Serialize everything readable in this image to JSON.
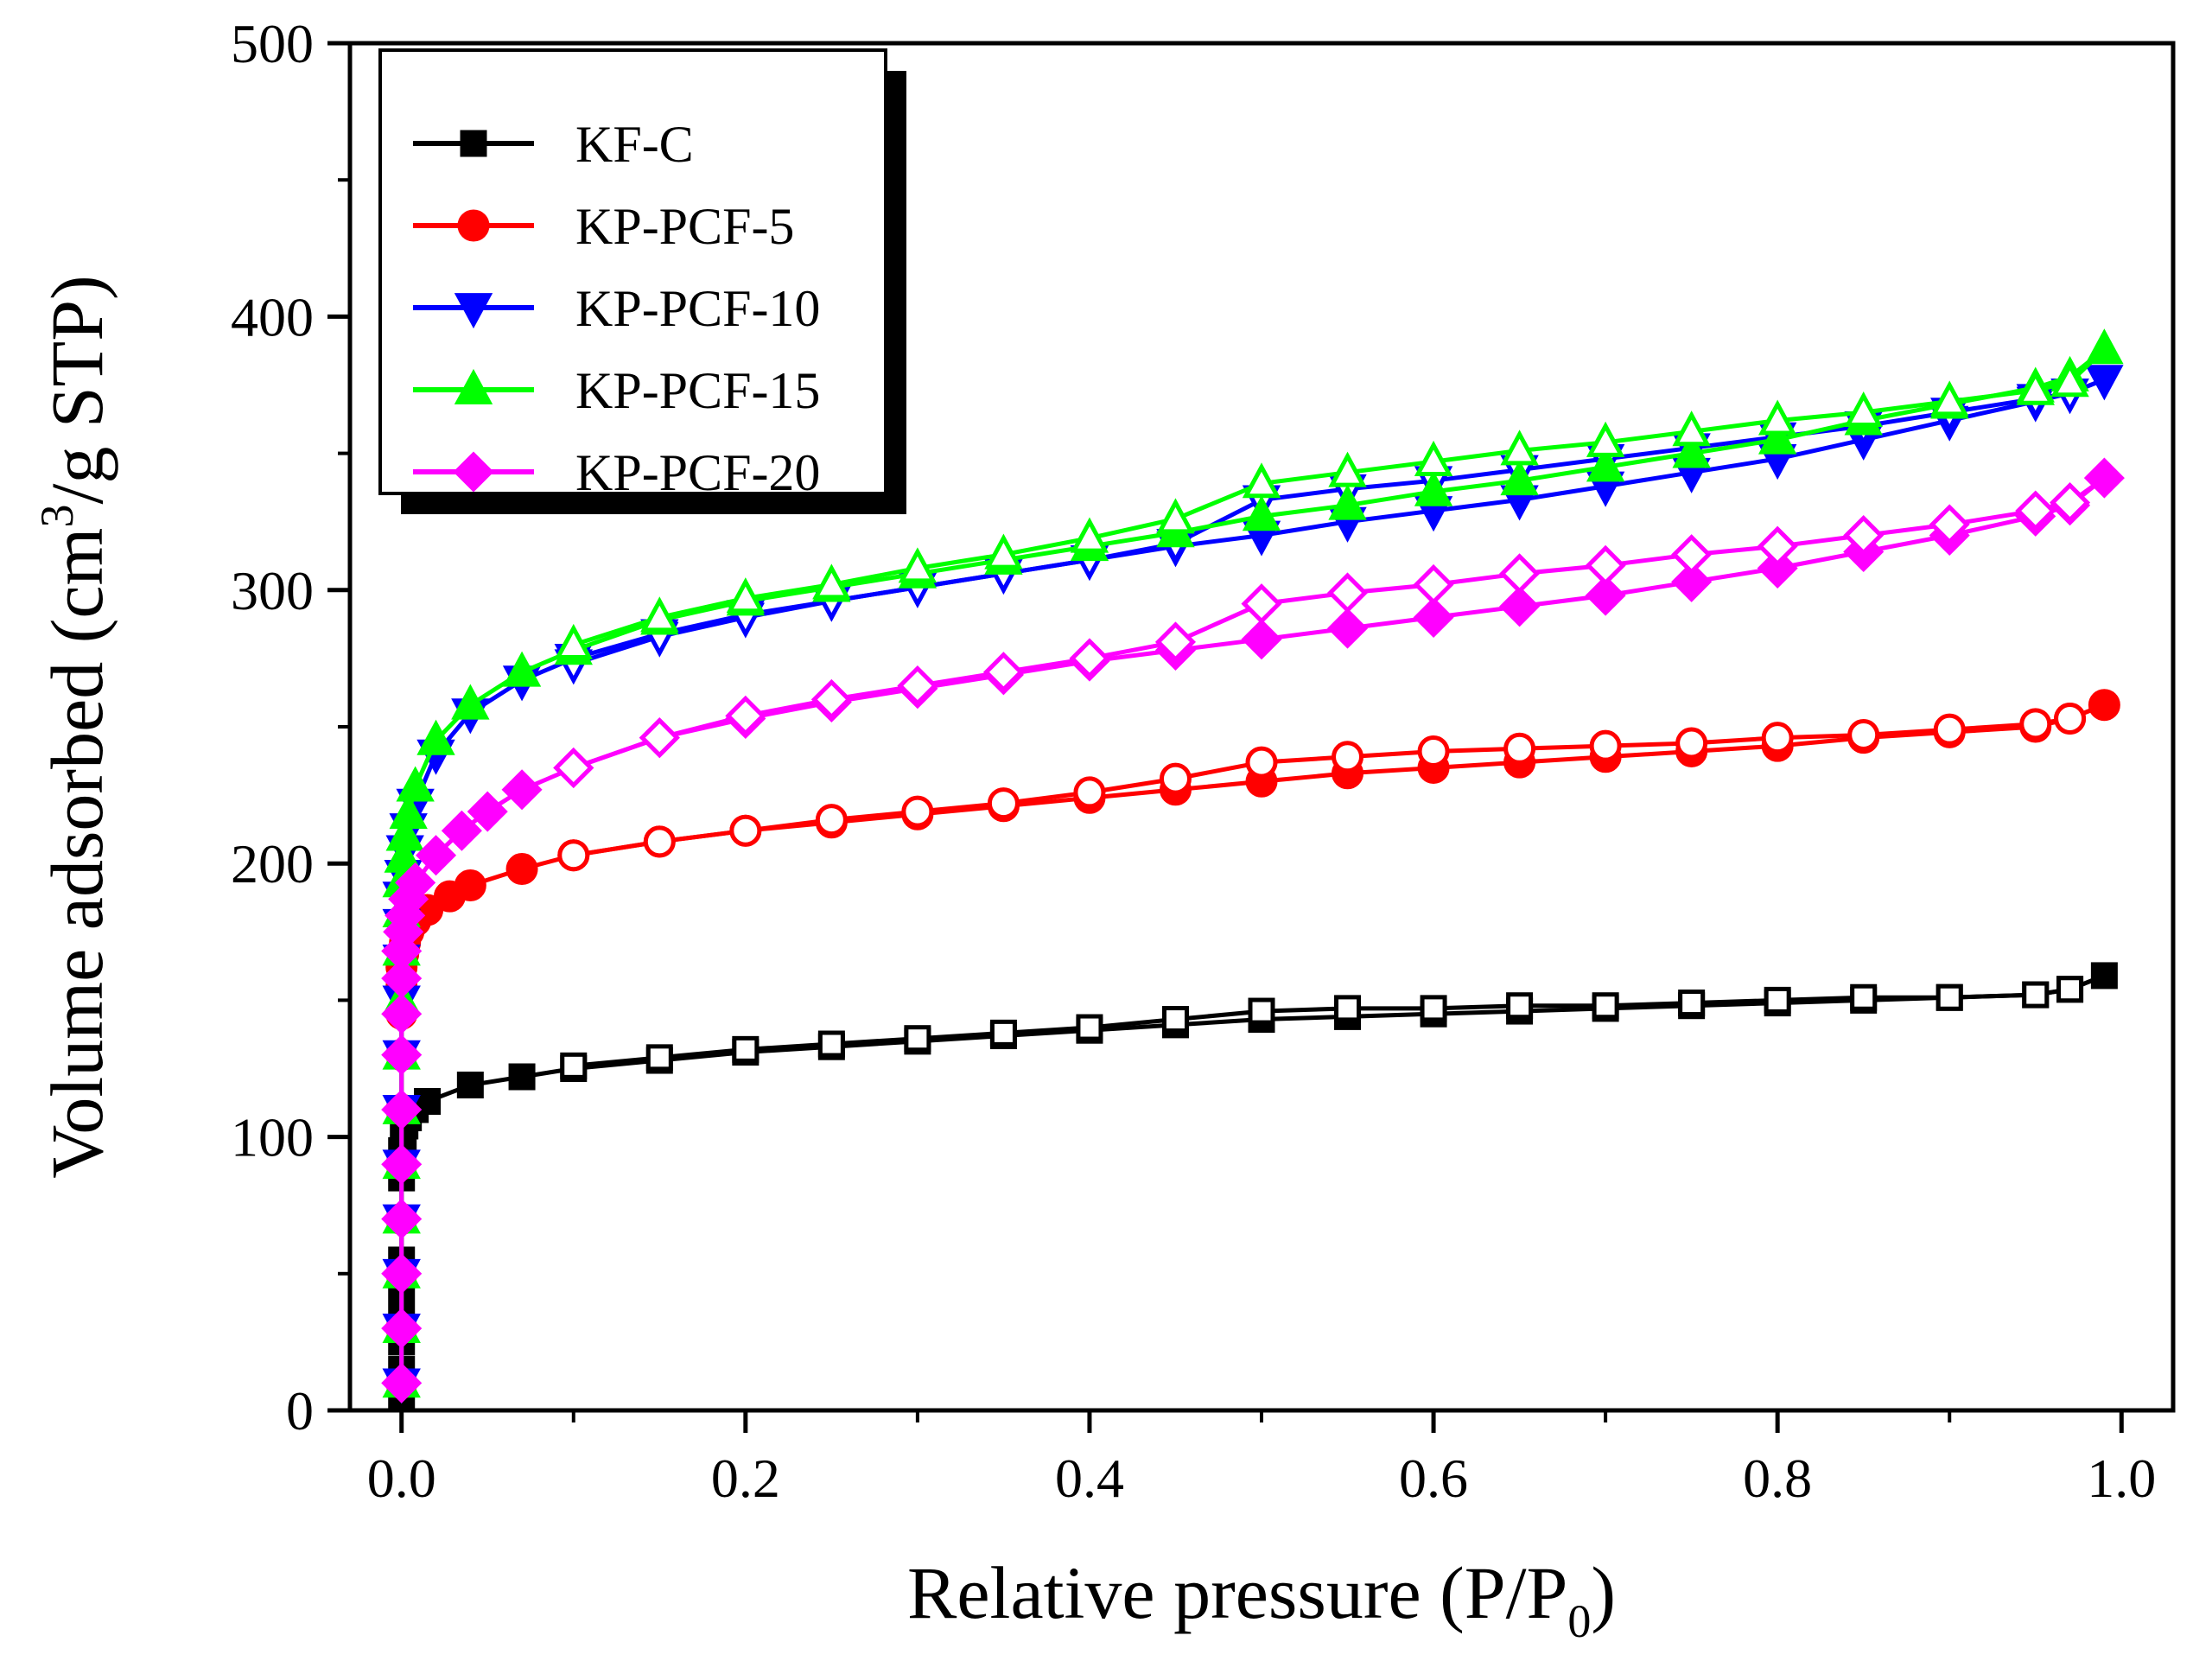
{
  "chart_data": {
    "type": "line",
    "xlabel_main": "Relative pressure (P/P",
    "xlabel_sub": "0",
    "xlabel_tail": ")",
    "ylabel_main": "Volume adsorbed (cm",
    "ylabel_sup": "3",
    "ylabel_tail": "/g STP)",
    "xlim": [
      -0.03,
      1.03
    ],
    "ylim": [
      0,
      500
    ],
    "xticks": [
      0.0,
      0.2,
      0.4,
      0.6,
      0.8,
      1.0
    ],
    "xtick_labels": [
      "0.0",
      "0.2",
      "0.4",
      "0.6",
      "0.8",
      "1.0"
    ],
    "yticks": [
      0,
      100,
      200,
      300,
      400,
      500
    ],
    "ytick_labels": [
      "0",
      "100",
      "200",
      "300",
      "400",
      "500"
    ],
    "grid": false,
    "legend_position": "top-left",
    "series": [
      {
        "name": "KF-C",
        "color": "#000000",
        "marker": "square",
        "adsorption": {
          "x": [
            0.0,
            0.0,
            0.0,
            0.0,
            0.0,
            0.0,
            0.0,
            0.0,
            0.001,
            0.002,
            0.004,
            0.008,
            0.015,
            0.04,
            0.07,
            0.1,
            0.15,
            0.2,
            0.25,
            0.3,
            0.35,
            0.4,
            0.45,
            0.5,
            0.55,
            0.6,
            0.65,
            0.7,
            0.75,
            0.8,
            0.85,
            0.9,
            0.95,
            0.97,
            0.99
          ],
          "y": [
            5,
            15,
            25,
            40,
            55,
            70,
            85,
            95,
            100,
            104,
            107,
            110,
            113,
            119,
            122,
            125,
            128,
            131,
            133,
            135,
            137,
            139,
            141,
            143,
            144,
            145,
            146,
            147,
            148,
            149,
            150,
            151,
            152,
            154,
            159
          ]
        },
        "desorption": {
          "x": [
            0.97,
            0.95,
            0.9,
            0.85,
            0.8,
            0.75,
            0.7,
            0.65,
            0.6,
            0.55,
            0.5,
            0.45,
            0.4,
            0.35,
            0.3,
            0.25,
            0.2,
            0.15,
            0.1
          ],
          "y": [
            154,
            152,
            151,
            151,
            150,
            149,
            148,
            148,
            147,
            147,
            146,
            143,
            140,
            138,
            136,
            134,
            132,
            129,
            126
          ]
        }
      },
      {
        "name": "KP-PCF-5",
        "color": "#ff0000",
        "marker": "circle",
        "adsorption": {
          "x": [
            0.0,
            0.0,
            0.0,
            0.0,
            0.0,
            0.0,
            0.0,
            0.0,
            0.0,
            0.0,
            0.001,
            0.002,
            0.004,
            0.008,
            0.015,
            0.028,
            0.04,
            0.07,
            0.1,
            0.15,
            0.2,
            0.25,
            0.3,
            0.35,
            0.4,
            0.45,
            0.5,
            0.55,
            0.6,
            0.65,
            0.7,
            0.75,
            0.8,
            0.85,
            0.9,
            0.95,
            0.97,
            0.99
          ],
          "y": [
            10,
            30,
            50,
            70,
            90,
            110,
            130,
            145,
            155,
            162,
            167,
            171,
            175,
            179,
            183,
            188,
            192,
            198,
            203,
            208,
            212,
            215,
            218,
            221,
            224,
            227,
            230,
            233,
            235,
            237,
            239,
            241,
            243,
            246,
            248,
            250,
            253,
            258
          ]
        },
        "desorption": {
          "x": [
            0.97,
            0.95,
            0.9,
            0.85,
            0.8,
            0.75,
            0.7,
            0.65,
            0.6,
            0.55,
            0.5,
            0.45,
            0.4,
            0.35,
            0.3,
            0.25,
            0.2,
            0.15,
            0.1
          ],
          "y": [
            253,
            251,
            249,
            247,
            246,
            244,
            243,
            242,
            241,
            239,
            237,
            231,
            226,
            222,
            219,
            216,
            212,
            208,
            203
          ]
        }
      },
      {
        "name": "KP-PCF-10",
        "color": "#0000ff",
        "marker": "triangle-down",
        "adsorption": {
          "x": [
            0.0,
            0.0,
            0.0,
            0.0,
            0.0,
            0.0,
            0.0,
            0.0,
            0.0,
            0.0,
            0.0,
            0.001,
            0.002,
            0.004,
            0.008,
            0.02,
            0.04,
            0.07,
            0.1,
            0.15,
            0.2,
            0.25,
            0.3,
            0.35,
            0.4,
            0.45,
            0.5,
            0.55,
            0.6,
            0.65,
            0.7,
            0.75,
            0.8,
            0.85,
            0.9,
            0.95,
            0.97,
            0.99
          ],
          "y": [
            10,
            30,
            50,
            70,
            90,
            110,
            130,
            150,
            165,
            178,
            188,
            196,
            205,
            213,
            222,
            240,
            255,
            267,
            275,
            284,
            291,
            296,
            301,
            306,
            311,
            316,
            320,
            325,
            329,
            333,
            338,
            343,
            348,
            355,
            362,
            369,
            372,
            377
          ]
        },
        "desorption": {
          "x": [
            0.97,
            0.95,
            0.9,
            0.85,
            0.8,
            0.75,
            0.7,
            0.65,
            0.6,
            0.55,
            0.5,
            0.45,
            0.4,
            0.35,
            0.3,
            0.25,
            0.2,
            0.15,
            0.1
          ],
          "y": [
            372,
            370,
            365,
            360,
            356,
            352,
            348,
            344,
            340,
            337,
            333,
            317,
            311,
            306,
            301,
            296,
            290,
            283,
            273
          ]
        }
      },
      {
        "name": "KP-PCF-15",
        "color": "#00ff00",
        "marker": "triangle-up",
        "adsorption": {
          "x": [
            0.0,
            0.0,
            0.0,
            0.0,
            0.0,
            0.0,
            0.0,
            0.0,
            0.0,
            0.0,
            0.0,
            0.001,
            0.002,
            0.004,
            0.008,
            0.02,
            0.04,
            0.07,
            0.1,
            0.15,
            0.2,
            0.25,
            0.3,
            0.35,
            0.4,
            0.45,
            0.5,
            0.55,
            0.6,
            0.65,
            0.7,
            0.75,
            0.8,
            0.85,
            0.9,
            0.95,
            0.97,
            0.99
          ],
          "y": [
            10,
            30,
            50,
            70,
            90,
            110,
            130,
            150,
            168,
            182,
            193,
            202,
            210,
            218,
            228,
            245,
            258,
            270,
            278,
            289,
            296,
            301,
            306,
            311,
            316,
            321,
            327,
            331,
            336,
            340,
            345,
            350,
            355,
            362,
            368,
            374,
            378,
            388
          ]
        },
        "desorption": {
          "x": [
            0.97,
            0.95,
            0.9,
            0.85,
            0.8,
            0.75,
            0.7,
            0.65,
            0.6,
            0.55,
            0.5,
            0.45,
            0.4,
            0.35,
            0.3,
            0.25,
            0.2,
            0.15,
            0.1
          ],
          "y": [
            376,
            373,
            369,
            365,
            362,
            358,
            354,
            351,
            347,
            343,
            339,
            326,
            319,
            313,
            308,
            302,
            297,
            290,
            280
          ]
        }
      },
      {
        "name": "KP-PCF-20",
        "color": "#ff00ff",
        "marker": "diamond",
        "adsorption": {
          "x": [
            0.0,
            0.0,
            0.0,
            0.0,
            0.0,
            0.0,
            0.0,
            0.0,
            0.0,
            0.0,
            0.001,
            0.002,
            0.004,
            0.008,
            0.02,
            0.035,
            0.05,
            0.07,
            0.1,
            0.15,
            0.2,
            0.25,
            0.3,
            0.35,
            0.4,
            0.45,
            0.5,
            0.55,
            0.6,
            0.65,
            0.7,
            0.75,
            0.8,
            0.85,
            0.9,
            0.95,
            0.97,
            0.99
          ],
          "y": [
            10,
            30,
            50,
            70,
            90,
            110,
            130,
            145,
            158,
            168,
            175,
            181,
            187,
            193,
            203,
            212,
            219,
            227,
            235,
            246,
            253,
            259,
            264,
            269,
            274,
            278,
            282,
            286,
            290,
            294,
            298,
            303,
            308,
            314,
            320,
            327,
            331,
            341
          ]
        },
        "desorption": {
          "x": [
            0.97,
            0.95,
            0.9,
            0.85,
            0.8,
            0.75,
            0.7,
            0.65,
            0.6,
            0.55,
            0.5,
            0.45,
            0.4,
            0.35,
            0.3,
            0.25,
            0.2,
            0.15,
            0.1
          ],
          "y": [
            332,
            329,
            324,
            320,
            316,
            313,
            309,
            306,
            302,
            299,
            295,
            281,
            275,
            270,
            265,
            260,
            254,
            246,
            235
          ]
        }
      }
    ]
  }
}
